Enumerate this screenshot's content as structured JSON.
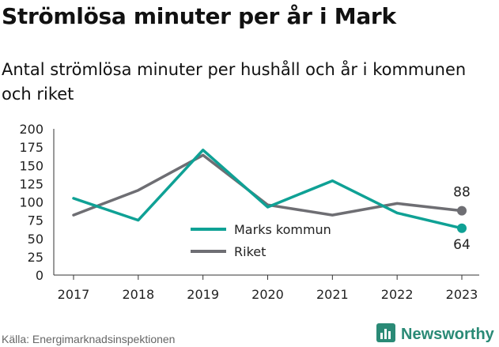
{
  "title": "Strömlösa minuter per år i Mark",
  "subtitle": "Antal strömlösa minuter per hushåll och år i kommunen och riket",
  "source": "Källa: Energimarknadsinspektionen",
  "brand": {
    "name": "Newsworthy",
    "icon": "newsworthy-logo-icon",
    "color": "#2a8a76"
  },
  "chart_data": {
    "type": "line",
    "x": [
      "2017",
      "2018",
      "2019",
      "2020",
      "2021",
      "2022",
      "2023"
    ],
    "series": [
      {
        "name": "Marks kommun",
        "color": "#0fa195",
        "values": [
          105,
          75,
          171,
          93,
          129,
          85,
          64
        ]
      },
      {
        "name": "Riket",
        "color": "#6e6e73",
        "values": [
          82,
          116,
          164,
          96,
          82,
          98,
          88
        ]
      }
    ],
    "yticks": [
      "0",
      "25",
      "50",
      "75",
      "100",
      "125",
      "150",
      "175",
      "200"
    ],
    "ylim": [
      0,
      200
    ],
    "end_labels": [
      "64",
      "88"
    ],
    "legend_position": "bottom-center",
    "grid": false
  }
}
